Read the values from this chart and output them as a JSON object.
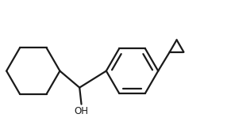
{
  "background_color": "#ffffff",
  "line_color": "#1a1a1a",
  "line_width": 1.6,
  "oh_label": "OH",
  "oh_fontsize": 8.5,
  "fig_width": 2.91,
  "fig_height": 1.68,
  "dpi": 100,
  "xlim": [
    -3.0,
    3.2
  ],
  "ylim": [
    -1.3,
    1.9
  ]
}
